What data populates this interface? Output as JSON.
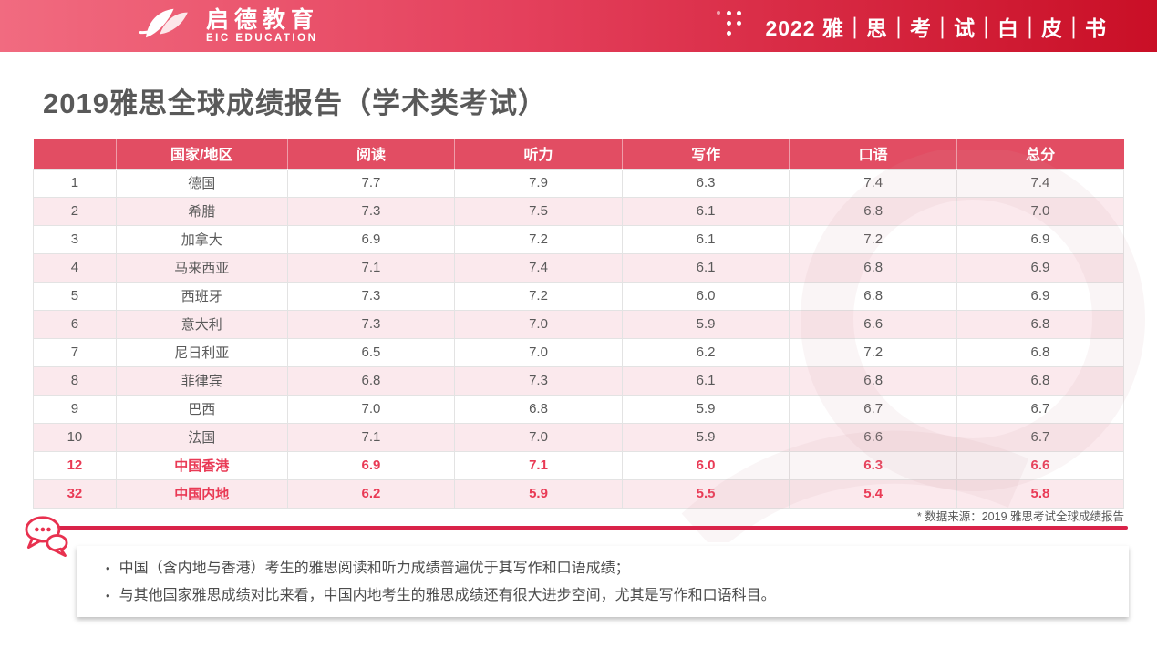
{
  "header": {
    "logo_cn": "启德教育",
    "logo_en": "EIC EDUCATION",
    "whitepaper_title": "2022 雅｜思｜考｜试｜白｜皮｜书"
  },
  "page_title": "2019雅思全球成绩报告（学术类考试）",
  "table": {
    "columns": [
      "",
      "国家/地区",
      "阅读",
      "听力",
      "写作",
      "口语",
      "总分"
    ],
    "rows": [
      {
        "cells": [
          "1",
          "德国",
          "7.7",
          "7.9",
          "6.3",
          "7.4",
          "7.4"
        ],
        "highlight": false
      },
      {
        "cells": [
          "2",
          "希腊",
          "7.3",
          "7.5",
          "6.1",
          "6.8",
          "7.0"
        ],
        "highlight": false
      },
      {
        "cells": [
          "3",
          "加拿大",
          "6.9",
          "7.2",
          "6.1",
          "7.2",
          "6.9"
        ],
        "highlight": false
      },
      {
        "cells": [
          "4",
          "马来西亚",
          "7.1",
          "7.4",
          "6.1",
          "6.8",
          "6.9"
        ],
        "highlight": false
      },
      {
        "cells": [
          "5",
          "西班牙",
          "7.3",
          "7.2",
          "6.0",
          "6.8",
          "6.9"
        ],
        "highlight": false
      },
      {
        "cells": [
          "6",
          "意大利",
          "7.3",
          "7.0",
          "5.9",
          "6.6",
          "6.8"
        ],
        "highlight": false
      },
      {
        "cells": [
          "7",
          "尼日利亚",
          "6.5",
          "7.0",
          "6.2",
          "7.2",
          "6.8"
        ],
        "highlight": false
      },
      {
        "cells": [
          "8",
          "菲律宾",
          "6.8",
          "7.3",
          "6.1",
          "6.8",
          "6.8"
        ],
        "highlight": false
      },
      {
        "cells": [
          "9",
          "巴西",
          "7.0",
          "6.8",
          "5.9",
          "6.7",
          "6.7"
        ],
        "highlight": false
      },
      {
        "cells": [
          "10",
          "法国",
          "7.1",
          "7.0",
          "5.9",
          "6.6",
          "6.7"
        ],
        "highlight": false
      },
      {
        "cells": [
          "12",
          "中国香港",
          "6.9",
          "7.1",
          "6.0",
          "6.3",
          "6.6"
        ],
        "highlight": true
      },
      {
        "cells": [
          "32",
          "中国内地",
          "6.2",
          "5.9",
          "5.5",
          "5.4",
          "5.8"
        ],
        "highlight": true
      }
    ]
  },
  "footnote": "* 数据来源：2019 雅思考试全球成绩报告",
  "notes": [
    "中国（含内地与香港）考生的雅思阅读和听力成绩普遍优于其写作和口语成绩；",
    "与其他国家雅思成绩对比来看，中国内地考生的雅思成绩还有很大进步空间，尤其是写作和口语科目。"
  ],
  "colors": {
    "bar_gradient_left": "#f16b80",
    "bar_gradient_right": "#c90f26",
    "table_header_bg": "#e24d63",
    "row_alt_bg": "#fbe9ed",
    "highlight_text": "#e93a55",
    "body_text": "#595959",
    "divider": "#d92349"
  }
}
